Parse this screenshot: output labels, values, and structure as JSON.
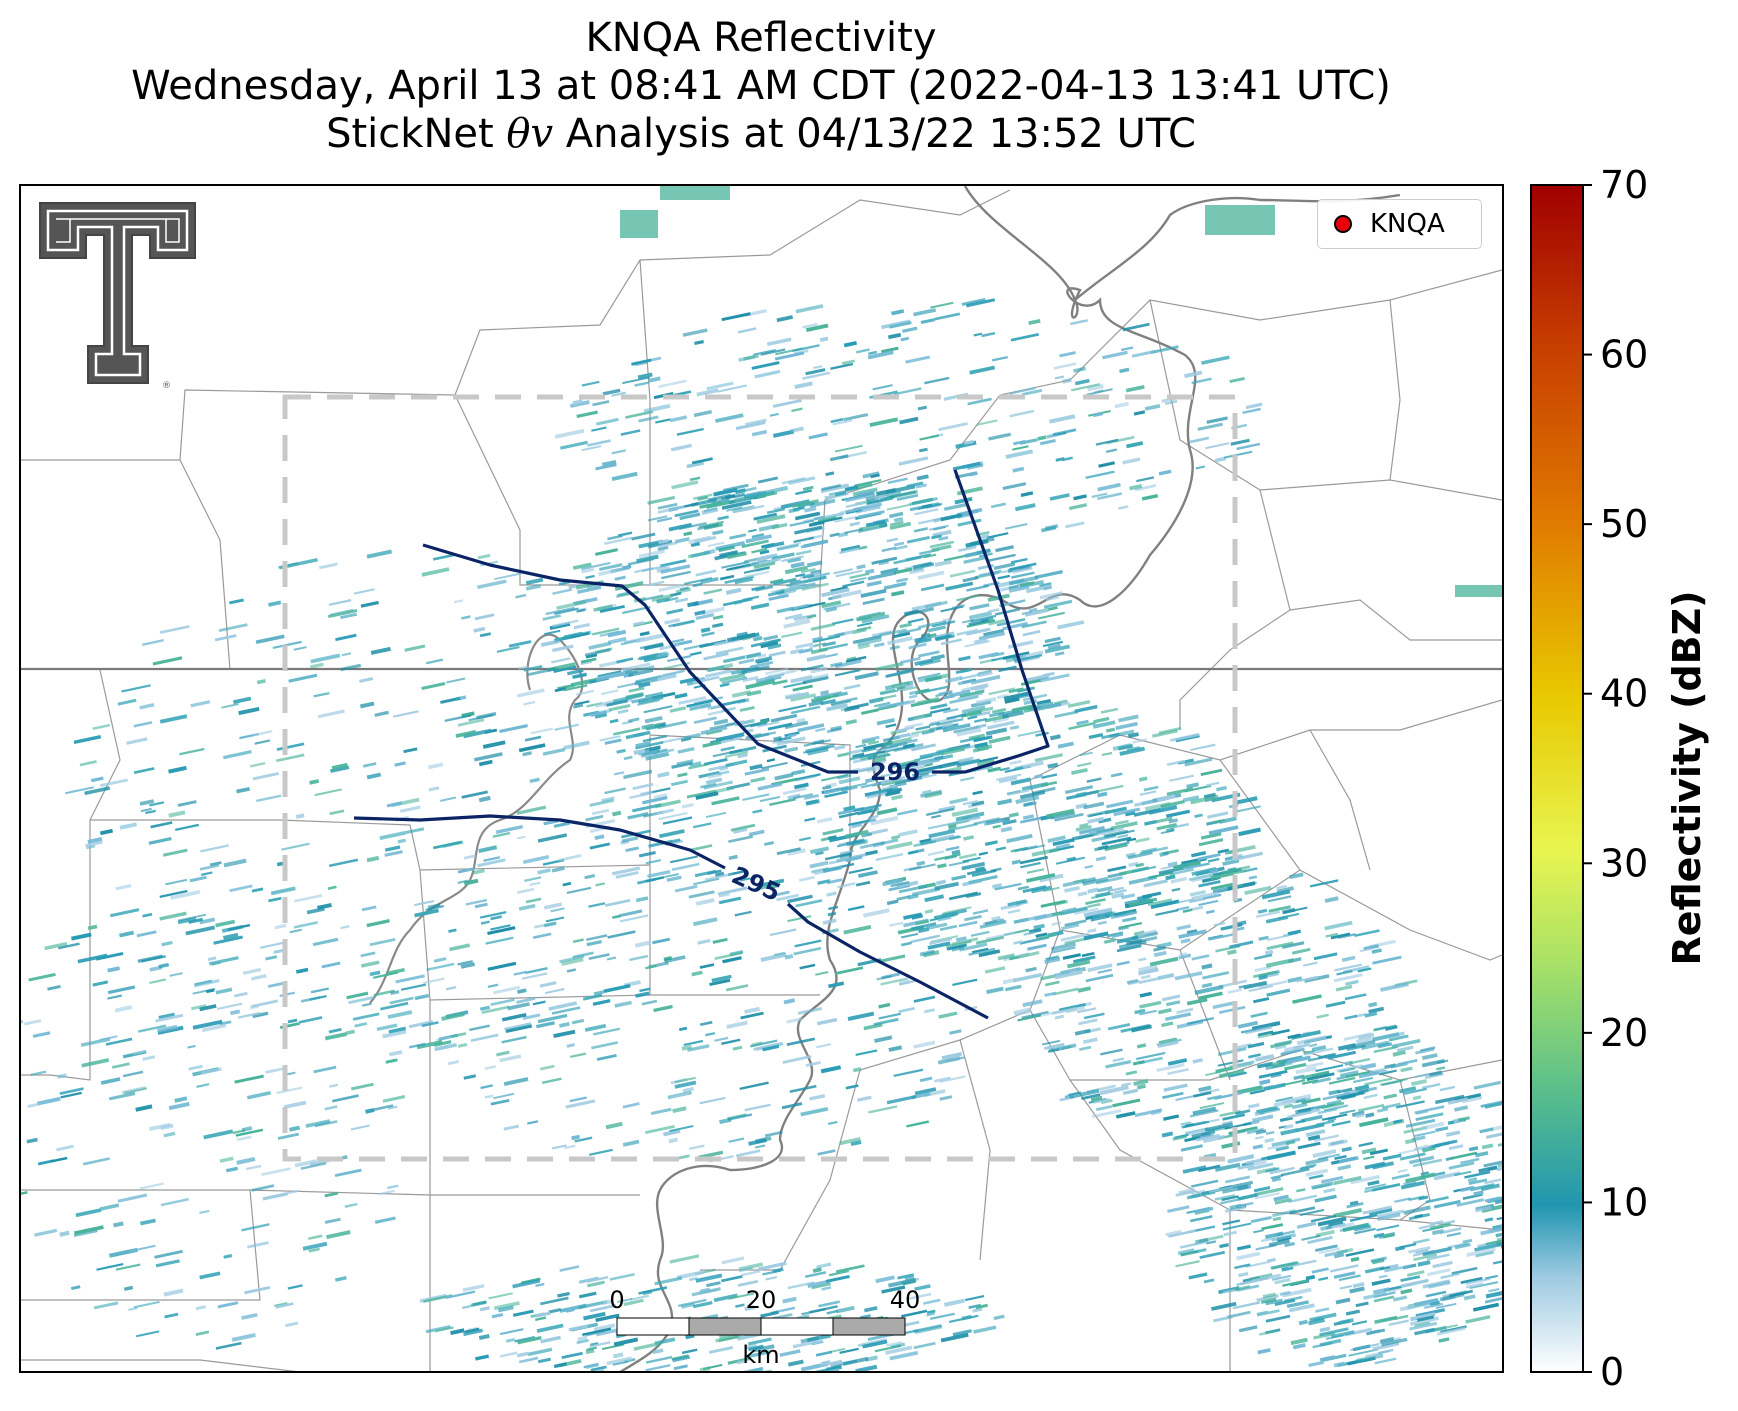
{
  "title": {
    "line1": "KNQA Reflectivity",
    "line2": "Wednesday, April 13 at 08:41 AM CDT (2022-04-13 13:41 UTC)",
    "line3_prefix": "StickNet ",
    "line3_symbol": "θv",
    "line3_suffix": " Analysis at 04/13/22 13:52 UTC"
  },
  "legend": {
    "label": "KNQA",
    "marker_color": "#e8000b"
  },
  "logo": {
    "name": "Texas Tech Double T",
    "color": "#555555"
  },
  "colorbar": {
    "label": "Reflectivity (dBZ)",
    "ticks": [
      "0",
      "10",
      "20",
      "30",
      "40",
      "50",
      "60",
      "70"
    ],
    "min": 0,
    "max": 70,
    "colors": [
      "#ffffff",
      "#9ecae1",
      "#2196b0",
      "#5cc08a",
      "#a5e068",
      "#e8f550",
      "#e8c800",
      "#e07800",
      "#c84000",
      "#a00000"
    ]
  },
  "contours": [
    {
      "label": "296",
      "value": 296
    },
    {
      "label": "295",
      "value": 295
    }
  ],
  "contour_color": "#0b2466",
  "scalebar": {
    "ticks": [
      "0",
      "20",
      "40"
    ],
    "unit": "km"
  },
  "analysis_box_color": "#c8c8c8",
  "reflectivity_color": "#2a9bb5"
}
